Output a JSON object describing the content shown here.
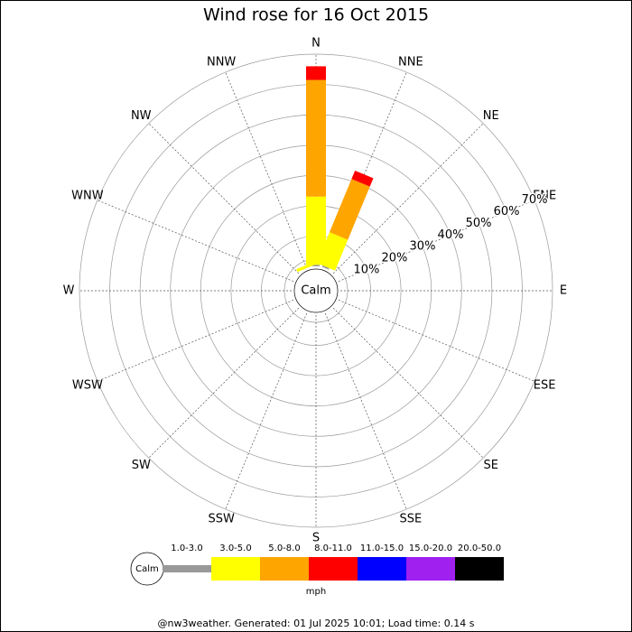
{
  "chart_data": {
    "type": "windrose",
    "title": "Wind rose for 16 Oct 2015",
    "directions": [
      "N",
      "NNE",
      "NE",
      "ENE",
      "E",
      "ESE",
      "SE",
      "SSE",
      "S",
      "SSW",
      "SW",
      "WSW",
      "W",
      "WNW",
      "NW",
      "NNW"
    ],
    "calm_label": "Calm",
    "series": [
      {
        "name": "1.0-3.0",
        "color": "#999999",
        "values": [
          0.5,
          0.5,
          0,
          0,
          0,
          0,
          0,
          0,
          0,
          0,
          0,
          0,
          0,
          0,
          0,
          0
        ]
      },
      {
        "name": "3.0-5.0",
        "color": "#ffff00",
        "values": [
          22.5,
          11,
          0,
          0,
          0,
          0,
          0,
          0,
          0,
          0,
          0,
          0,
          0,
          0,
          0,
          1
        ]
      },
      {
        "name": "5.0-8.0",
        "color": "#ffa500",
        "values": [
          38.5,
          19,
          0,
          0,
          0,
          0,
          0,
          0,
          0,
          0,
          0,
          0,
          0,
          0,
          0,
          0
        ]
      },
      {
        "name": "8.0-11.0",
        "color": "#ff0000",
        "values": [
          4.5,
          3,
          0,
          0,
          0,
          0,
          0,
          0,
          0,
          0,
          0,
          0,
          0,
          0,
          0,
          0
        ]
      },
      {
        "name": "11.0-15.0",
        "color": "#0000ff",
        "values": [
          0,
          0,
          0,
          0,
          0,
          0,
          0,
          0,
          0,
          0,
          0,
          0,
          0,
          0,
          0,
          0
        ]
      },
      {
        "name": "15.0-20.0",
        "color": "#a020f0",
        "values": [
          0,
          0,
          0,
          0,
          0,
          0,
          0,
          0,
          0,
          0,
          0,
          0,
          0,
          0,
          0,
          0
        ]
      },
      {
        "name": "20.0-50.0",
        "color": "#000000",
        "values": [
          0,
          0,
          0,
          0,
          0,
          0,
          0,
          0,
          0,
          0,
          0,
          0,
          0,
          0,
          0,
          0
        ]
      }
    ],
    "rlim": [
      0,
      70
    ],
    "rticks": [
      {
        "value": 10,
        "label": "10%"
      },
      {
        "value": 20,
        "label": "20%"
      },
      {
        "value": 30,
        "label": "30%"
      },
      {
        "value": 40,
        "label": "40%"
      },
      {
        "value": 50,
        "label": "50%"
      },
      {
        "value": 60,
        "label": "60%"
      },
      {
        "value": 70,
        "label": "70%"
      }
    ],
    "legend_unit": "mph",
    "footer": "@nw3weather. Generated: 01 Jul 2025 10:01; Load time: 0.14 s"
  }
}
